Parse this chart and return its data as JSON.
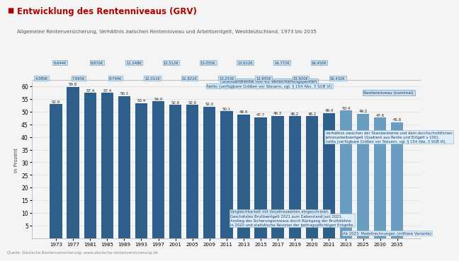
{
  "title": "Entwicklung des Rentenniveaus (GRV)",
  "subtitle": "Allgemeine Rentenversicherung, Verhältnis zwischen Rentenniveau und Arbeitsentgelt, Westdeutschland, 1973 bis 2035",
  "source": "Quelle: Deutsche Rentenversicherung; www.deutsche-rentenversicherung.de",
  "ylabel": "in Prozent",
  "years": [
    1973,
    1977,
    1981,
    1985,
    1989,
    1993,
    1997,
    2001,
    2005,
    2009,
    2011,
    2013,
    2015,
    2017,
    2019,
    2020,
    2021,
    2023,
    2025,
    2030,
    2035
  ],
  "values": [
    52.9,
    59.8,
    57.4,
    57.4,
    56.1,
    53.4,
    54.0,
    52.6,
    52.6,
    52.0,
    50.1,
    48.9,
    47.7,
    48.3,
    48.2,
    48.2,
    49.4,
    50.4,
    49.2,
    47.6,
    45.8
  ],
  "future_years": [
    2023,
    2025,
    2030,
    2035
  ],
  "bar_color_dark": "#2d5f8a",
  "bar_color_light": "#6a9ec0",
  "background_color": "#f4f4f4",
  "border_color": "#cccccc",
  "ylim": [
    0,
    62
  ],
  "yticks": [
    5,
    10,
    15,
    20,
    25,
    30,
    35,
    40,
    45,
    50,
    55,
    60
  ],
  "top_labels": [
    {
      "idx": 0,
      "row": 1,
      "text": "4.380€"
    },
    {
      "idx": 1,
      "row": 0,
      "text": "6.644€"
    },
    {
      "idx": 2,
      "row": 1,
      "text": "7.865€"
    },
    {
      "idx": 3,
      "row": 0,
      "text": "8.870€"
    },
    {
      "idx": 4,
      "row": 1,
      "text": "9.799€"
    },
    {
      "idx": 5,
      "row": 0,
      "text": "11.248€"
    },
    {
      "idx": 6,
      "row": 1,
      "text": "12.011€"
    },
    {
      "idx": 7,
      "row": 0,
      "text": "12.512€"
    },
    {
      "idx": 8,
      "row": 1,
      "text": "12.821€"
    },
    {
      "idx": 9,
      "row": 0,
      "text": "13.055€"
    },
    {
      "idx": 10,
      "row": 1,
      "text": "13.253€"
    },
    {
      "idx": 11,
      "row": 0,
      "text": "13.612€"
    },
    {
      "idx": 12,
      "row": 1,
      "text": "13.955€"
    },
    {
      "idx": 13,
      "row": 0,
      "text": "14.772€"
    },
    {
      "idx": 14,
      "row": 1,
      "text": "15.920€"
    },
    {
      "idx": 15,
      "row": 0,
      "text": "16.450€"
    },
    {
      "idx": 16,
      "row": 1,
      "text": "16.432€"
    }
  ],
  "ann_standardrente_text": "Standardrente mit 45 Versicherungsjahren",
  "ann_netto_text": "Netto (verfügbare Größen vor Steuern, vgl. § 154 Abs. 3 SGB VI)",
  "ann_rentniveau_text": "Rentenniveau (nominal)",
  "ann_verhaeltnis_text": "Verhältnis zwischen der Standardrente und dem durchschnittlichen\nJahresarbeitsentgelt (Quotient aus Rente und Entgelt x 100),\nnetto (verfügbare Größen vor Steuern, vgl. § 154 Abs. 3 SGB VI).",
  "ann_vergl_text": "Vergleichbarkeit mit Vorjahreswerten eingeschränkt.",
  "ann_geschaetzt_text": "Geschätztes Bruttoentgelt 2021 zum Datenstand Juni 2021.\nAnstieg des Sicherungsniveaus durch Rückgang der Bruttolöhne\nin 2020 und statistische Revision der beitragspflichtigen Entgelte.",
  "ann_ab2023_text": "Ab 2023: Modellrechnungen (mittlere Variante)"
}
